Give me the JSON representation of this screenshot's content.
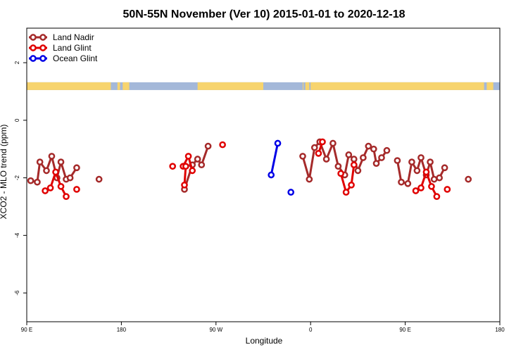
{
  "chart_data": {
    "type": "line",
    "title": "50N-55N November (Ver 10)   2015-01-01 to 2020-12-18",
    "xlabel": "Longitude",
    "ylabel": "XCO2 - MLO trend (ppm)",
    "xlim": [
      90,
      450
    ],
    "ylim": [
      -7.0,
      3.2
    ],
    "x_ticks": [
      {
        "value": 90,
        "label": "90 E"
      },
      {
        "value": 162,
        "label": "180"
      },
      {
        "value": 234,
        "label": "90 W"
      },
      {
        "value": 306,
        "label": "0"
      },
      {
        "value": 378,
        "label": "90 E"
      },
      {
        "value": 450,
        "label": "180"
      }
    ],
    "y_ticks": [
      {
        "value": 2,
        "label": "2"
      },
      {
        "value": 0,
        "label": "0"
      },
      {
        "value": -2,
        "label": "-2"
      },
      {
        "value": -4,
        "label": "-4"
      },
      {
        "value": -6,
        "label": "-6"
      }
    ],
    "grid": false,
    "legend_position": "top-left",
    "land_ocean_band": {
      "y_top": 1.32,
      "y_bottom": 1.05,
      "ocean_color": "#a4b8d9",
      "land_color": "#f7d46e"
    },
    "series": [
      {
        "name": "Land Nadir",
        "color": "#a52a2a",
        "segments": [
          [
            [
              93,
              -2.1
            ],
            [
              98,
              -2.15
            ],
            [
              100,
              -1.45
            ],
            [
              105,
              -1.75
            ],
            [
              109,
              -1.25
            ],
            [
              113,
              -2.0
            ],
            [
              116,
              -1.45
            ],
            [
              120,
              -2.05
            ],
            [
              123,
              -2.0
            ],
            [
              128,
              -1.65
            ]
          ],
          [
            [
              145,
              -2.05
            ]
          ],
          [
            [
              210,
              -2.4
            ],
            [
              216,
              -1.55
            ],
            [
              220,
              -1.35
            ],
            [
              223,
              -1.55
            ],
            [
              228,
              -0.9
            ]
          ],
          [
            [
              300,
              -1.25
            ],
            [
              305,
              -2.05
            ],
            [
              309,
              -0.95
            ],
            [
              313,
              -0.75
            ],
            [
              318,
              -1.35
            ],
            [
              323,
              -0.8
            ],
            [
              327,
              -1.6
            ],
            [
              332,
              -1.9
            ],
            [
              335,
              -1.2
            ],
            [
              339,
              -1.35
            ],
            [
              342,
              -1.75
            ],
            [
              346,
              -1.3
            ],
            [
              350,
              -0.9
            ],
            [
              354,
              -1.0
            ],
            [
              356,
              -1.5
            ],
            [
              360,
              -1.3
            ],
            [
              364,
              -1.05
            ]
          ],
          [
            [
              372,
              -1.4
            ],
            [
              375,
              -2.15
            ],
            [
              380,
              -2.2
            ],
            [
              383,
              -1.45
            ],
            [
              387,
              -1.75
            ],
            [
              390,
              -1.3
            ],
            [
              394,
              -1.9
            ],
            [
              397,
              -1.45
            ],
            [
              400,
              -2.05
            ],
            [
              404,
              -2.0
            ],
            [
              408,
              -1.65
            ]
          ],
          [
            [
              426,
              -2.05
            ]
          ]
        ]
      },
      {
        "name": "Land Glint",
        "color": "#e00000",
        "segments": [
          [
            [
              104,
              -2.45
            ],
            [
              108,
              -2.35
            ],
            [
              112,
              -1.8
            ],
            [
              116,
              -2.3
            ],
            [
              120,
              -2.65
            ]
          ],
          [
            [
              128,
              -2.4
            ]
          ],
          [
            [
              201,
              -1.6
            ]
          ],
          [
            [
              209,
              -1.6
            ],
            [
              213,
              -1.25
            ],
            [
              216,
              -1.75
            ]
          ],
          [
            [
              210,
              -2.25
            ],
            [
              211,
              -1.6
            ]
          ],
          [
            [
              239,
              -0.85
            ]
          ],
          [
            [
              312,
              -1.15
            ],
            [
              315,
              -0.75
            ]
          ],
          [
            [
              329,
              -1.85
            ],
            [
              333,
              -2.5
            ],
            [
              337,
              -2.25
            ],
            [
              339,
              -1.55
            ]
          ],
          [
            [
              386,
              -2.45
            ],
            [
              390,
              -2.35
            ],
            [
              394,
              -1.8
            ],
            [
              398,
              -2.3
            ],
            [
              402,
              -2.65
            ]
          ],
          [
            [
              410,
              -2.4
            ]
          ]
        ]
      },
      {
        "name": "Ocean Glint",
        "color": "#0000e6",
        "segments": [
          [
            [
              276,
              -1.9
            ],
            [
              281,
              -0.8
            ]
          ],
          [
            [
              291,
              -2.5
            ]
          ]
        ]
      }
    ]
  }
}
